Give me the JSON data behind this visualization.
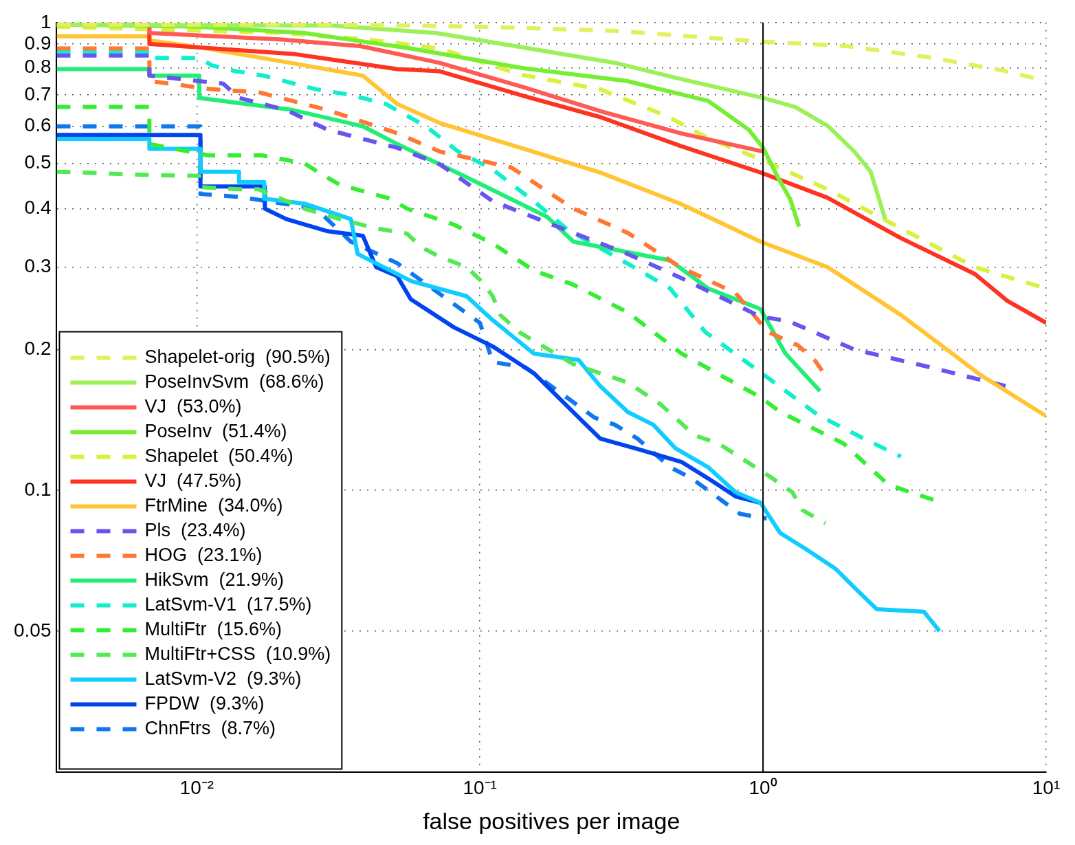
{
  "chart_data": {
    "type": "line",
    "xlabel": "false positives per image",
    "log": "xy",
    "grid": true,
    "legend": "bottom left",
    "marker": "none",
    "xlim": [
      0.0032,
      10
    ],
    "ylim": [
      0.025,
      1
    ],
    "xticks": [
      {
        "value": 0.01,
        "label": "10⁻²"
      },
      {
        "value": 0.1,
        "label": "10⁻¹"
      },
      {
        "value": 1,
        "label": "10⁰"
      },
      {
        "value": 10,
        "label": "10¹"
      }
    ],
    "yticks": [
      0.05,
      0.1,
      0.2,
      0.3,
      0.4,
      0.5,
      0.6,
      0.7,
      0.8,
      0.9,
      1
    ],
    "ref_lines": [
      {
        "axis": "x",
        "value": 1,
        "color": "#000000"
      }
    ],
    "series": [
      {
        "name": "Shapelet-orig  (90.5%)",
        "color": "#e2f05e",
        "line_style": "dashed",
        "x": [
          0.0032,
          0.03,
          0.1,
          0.3,
          1,
          2,
          4,
          7,
          10
        ],
        "values": [
          0.99,
          0.99,
          0.98,
          0.96,
          0.91,
          0.89,
          0.84,
          0.79,
          0.75
        ]
      },
      {
        "name": "PoseInvSvm  (68.6%)",
        "color": "#9cf05a",
        "line_style": "solid",
        "x": [
          0.0032,
          0.03,
          0.07,
          0.12,
          0.3,
          0.5,
          1,
          1.3,
          1.7,
          2.1,
          2.4,
          2.7
        ],
        "values": [
          0.99,
          0.985,
          0.95,
          0.9,
          0.82,
          0.76,
          0.69,
          0.66,
          0.6,
          0.53,
          0.48,
          0.38
        ]
      },
      {
        "name": "VJ  (53.0%)",
        "color": "#ff5b55",
        "line_style": "solid",
        "x": [
          0.0032,
          0.0068,
          0.0068,
          0.02,
          0.038,
          0.072,
          0.14,
          0.27,
          0.51,
          1
        ],
        "values": [
          0.99,
          0.99,
          0.95,
          0.92,
          0.89,
          0.82,
          0.73,
          0.645,
          0.58,
          0.53
        ]
      },
      {
        "name": "PoseInv  (51.4%)",
        "color": "#77ee33",
        "line_style": "solid",
        "x": [
          0.0032,
          0.01,
          0.024,
          0.057,
          0.14,
          0.33,
          0.64,
          0.89,
          1,
          1.13,
          1.25,
          1.34
        ],
        "values": [
          0.99,
          0.98,
          0.95,
          0.88,
          0.8,
          0.75,
          0.68,
          0.59,
          0.54,
          0.466,
          0.418,
          0.366
        ]
      },
      {
        "name": "Shapelet  (50.4%)",
        "color": "#d9f03c",
        "line_style": "dashed",
        "x": [
          0.0032,
          0.02,
          0.04,
          0.072,
          0.139,
          0.266,
          0.46,
          0.64,
          0.98,
          1.69,
          3.07,
          5.6,
          10
        ],
        "values": [
          0.98,
          0.95,
          0.92,
          0.88,
          0.774,
          0.72,
          0.63,
          0.566,
          0.51,
          0.44,
          0.363,
          0.3,
          0.27
        ]
      },
      {
        "name": "VJ  (47.5%)",
        "color": "#ff3322",
        "line_style": "solid",
        "x": [
          0.0032,
          0.0068,
          0.0068,
          0.0219,
          0.051,
          0.072,
          0.139,
          0.266,
          0.51,
          0.98,
          1.69,
          3.07,
          5.6,
          7.3,
          10
        ],
        "values": [
          0.99,
          0.99,
          0.9,
          0.857,
          0.795,
          0.787,
          0.7,
          0.628,
          0.545,
          0.478,
          0.422,
          0.346,
          0.29,
          0.254,
          0.228
        ]
      },
      {
        "name": "FtrMine  (34.0%)",
        "color": "#ffc533",
        "line_style": "solid",
        "x": [
          0.0032,
          0.0068,
          0.0068,
          0.0102,
          0.0207,
          0.0386,
          0.051,
          0.072,
          0.139,
          0.266,
          0.51,
          0.98,
          1.69,
          3.07,
          5.9,
          10
        ],
        "values": [
          0.935,
          0.935,
          0.916,
          0.885,
          0.823,
          0.77,
          0.67,
          0.61,
          0.54,
          0.478,
          0.41,
          0.34,
          0.3,
          0.237,
          0.176,
          0.144
        ]
      },
      {
        "name": "Pls  (23.4%)",
        "color": "#6655ee",
        "line_style": "dashed",
        "x": [
          0.0032,
          0.0068,
          0.0068,
          0.0124,
          0.0141,
          0.0207,
          0.029,
          0.051,
          0.072,
          0.111,
          0.214,
          0.333,
          0.51,
          0.98,
          1.23,
          2.1,
          3.92,
          7.5
        ],
        "values": [
          0.85,
          0.85,
          0.77,
          0.74,
          0.69,
          0.65,
          0.59,
          0.54,
          0.498,
          0.415,
          0.355,
          0.32,
          0.285,
          0.235,
          0.23,
          0.2,
          0.183,
          0.166
        ]
      },
      {
        "name": "HOG  (23.1%)",
        "color": "#ff7733",
        "line_style": "dashed",
        "x": [
          0.0032,
          0.0068,
          0.0068,
          0.0113,
          0.0165,
          0.029,
          0.051,
          0.072,
          0.129,
          0.214,
          0.333,
          0.51,
          0.8,
          1.04,
          1.33,
          1.53,
          1.66
        ],
        "values": [
          0.88,
          0.88,
          0.75,
          0.72,
          0.71,
          0.65,
          0.58,
          0.53,
          0.49,
          0.4,
          0.355,
          0.3,
          0.264,
          0.218,
          0.204,
          0.189,
          0.176
        ]
      },
      {
        "name": "HikSvm  (21.9%)",
        "color": "#22ee77",
        "line_style": "solid",
        "x": [
          0.0032,
          0.0068,
          0.0068,
          0.0102,
          0.0102,
          0.0219,
          0.0386,
          0.051,
          0.0897,
          0.173,
          0.214,
          0.47,
          0.64,
          0.98,
          1.2,
          1.59
        ],
        "values": [
          0.795,
          0.795,
          0.77,
          0.77,
          0.69,
          0.65,
          0.6,
          0.55,
          0.467,
          0.384,
          0.34,
          0.31,
          0.27,
          0.244,
          0.196,
          0.163
        ]
      },
      {
        "name": "LatSvm-V1  (17.5%)",
        "color": "#11eecc",
        "line_style": "dashed",
        "x": [
          0.0032,
          0.0068,
          0.0068,
          0.0102,
          0.0113,
          0.0137,
          0.0172,
          0.0264,
          0.035,
          0.0465,
          0.0645,
          0.0838,
          0.111,
          0.155,
          0.205,
          0.333,
          0.47,
          0.625,
          1.04,
          1.56,
          2.21,
          3.07
        ],
        "values": [
          0.865,
          0.865,
          0.84,
          0.84,
          0.81,
          0.787,
          0.77,
          0.72,
          0.7,
          0.67,
          0.6,
          0.53,
          0.485,
          0.415,
          0.36,
          0.305,
          0.27,
          0.218,
          0.174,
          0.145,
          0.13,
          0.118
        ]
      },
      {
        "name": "MultiFtr  (15.6%)",
        "color": "#33ee33",
        "line_style": "dashed",
        "x": [
          0.0032,
          0.0068,
          0.0068,
          0.011,
          0.017,
          0.024,
          0.0274,
          0.032,
          0.0483,
          0.0553,
          0.0807,
          0.111,
          0.155,
          0.214,
          0.333,
          0.515,
          0.98,
          1.15,
          1.92,
          2.76,
          3.32,
          4.08
        ],
        "values": [
          0.66,
          0.66,
          0.55,
          0.52,
          0.52,
          0.5,
          0.475,
          0.45,
          0.42,
          0.4,
          0.37,
          0.337,
          0.295,
          0.275,
          0.24,
          0.196,
          0.158,
          0.147,
          0.126,
          0.103,
          0.099,
          0.095
        ]
      },
      {
        "name": "MultiFtr+CSS  (10.9%)",
        "color": "#55e855",
        "line_style": "dashed",
        "x": [
          0.0032,
          0.0068,
          0.0102,
          0.0102,
          0.0141,
          0.0165,
          0.024,
          0.032,
          0.043,
          0.0552,
          0.062,
          0.072,
          0.0897,
          0.1,
          0.111,
          0.118,
          0.139,
          0.214,
          0.333,
          0.433,
          0.573,
          0.695,
          0.94,
          1.08,
          1.27,
          1.38,
          1.66
        ],
        "values": [
          0.48,
          0.472,
          0.47,
          0.445,
          0.44,
          0.44,
          0.4,
          0.38,
          0.363,
          0.354,
          0.331,
          0.316,
          0.3,
          0.282,
          0.26,
          0.237,
          0.217,
          0.186,
          0.17,
          0.153,
          0.131,
          0.126,
          0.112,
          0.106,
          0.099,
          0.0906,
          0.085
        ]
      },
      {
        "name": "LatSvm-V2  (9.3%)",
        "color": "#11ccff",
        "line_style": "solid",
        "x": [
          0.0032,
          0.0068,
          0.0068,
          0.0103,
          0.0103,
          0.0141,
          0.0141,
          0.0173,
          0.0173,
          0.024,
          0.035,
          0.037,
          0.0572,
          0.0897,
          0.111,
          0.155,
          0.223,
          0.266,
          0.333,
          0.41,
          0.49,
          0.64,
          0.8,
          0.98,
          1.15,
          1.41,
          1.8,
          2.1,
          2.52,
          3.7,
          4.2
        ],
        "values": [
          0.564,
          0.564,
          0.537,
          0.537,
          0.48,
          0.48,
          0.456,
          0.456,
          0.42,
          0.41,
          0.38,
          0.32,
          0.28,
          0.26,
          0.231,
          0.196,
          0.19,
          0.167,
          0.147,
          0.138,
          0.123,
          0.112,
          0.099,
          0.094,
          0.081,
          0.075,
          0.068,
          0.062,
          0.0557,
          0.055,
          0.05
        ]
      },
      {
        "name": "FPDW  (9.3%)",
        "color": "#0044ee",
        "line_style": "solid",
        "x": [
          0.0032,
          0.0103,
          0.0103,
          0.0174,
          0.0174,
          0.0207,
          0.029,
          0.0386,
          0.043,
          0.051,
          0.057,
          0.081,
          0.111,
          0.155,
          0.229,
          0.266,
          0.37,
          0.515,
          0.64,
          0.8,
          0.98
        ],
        "values": [
          0.575,
          0.575,
          0.446,
          0.446,
          0.4,
          0.38,
          0.358,
          0.35,
          0.3,
          0.287,
          0.256,
          0.223,
          0.203,
          0.178,
          0.141,
          0.129,
          0.122,
          0.115,
          0.106,
          0.097,
          0.094
        ]
      },
      {
        "name": "ChnFtrs  (8.7%)",
        "color": "#1177ee",
        "line_style": "dashed",
        "x": [
          0.0032,
          0.0103,
          0.0103,
          0.0141,
          0.0264,
          0.035,
          0.051,
          0.1,
          0.111,
          0.145,
          0.254,
          0.3,
          0.36,
          0.47,
          0.56,
          0.83,
          1.03
        ],
        "values": [
          0.6,
          0.6,
          0.43,
          0.424,
          0.4,
          0.34,
          0.306,
          0.228,
          0.188,
          0.183,
          0.143,
          0.138,
          0.129,
          0.112,
          0.106,
          0.089,
          0.087
        ]
      }
    ]
  }
}
